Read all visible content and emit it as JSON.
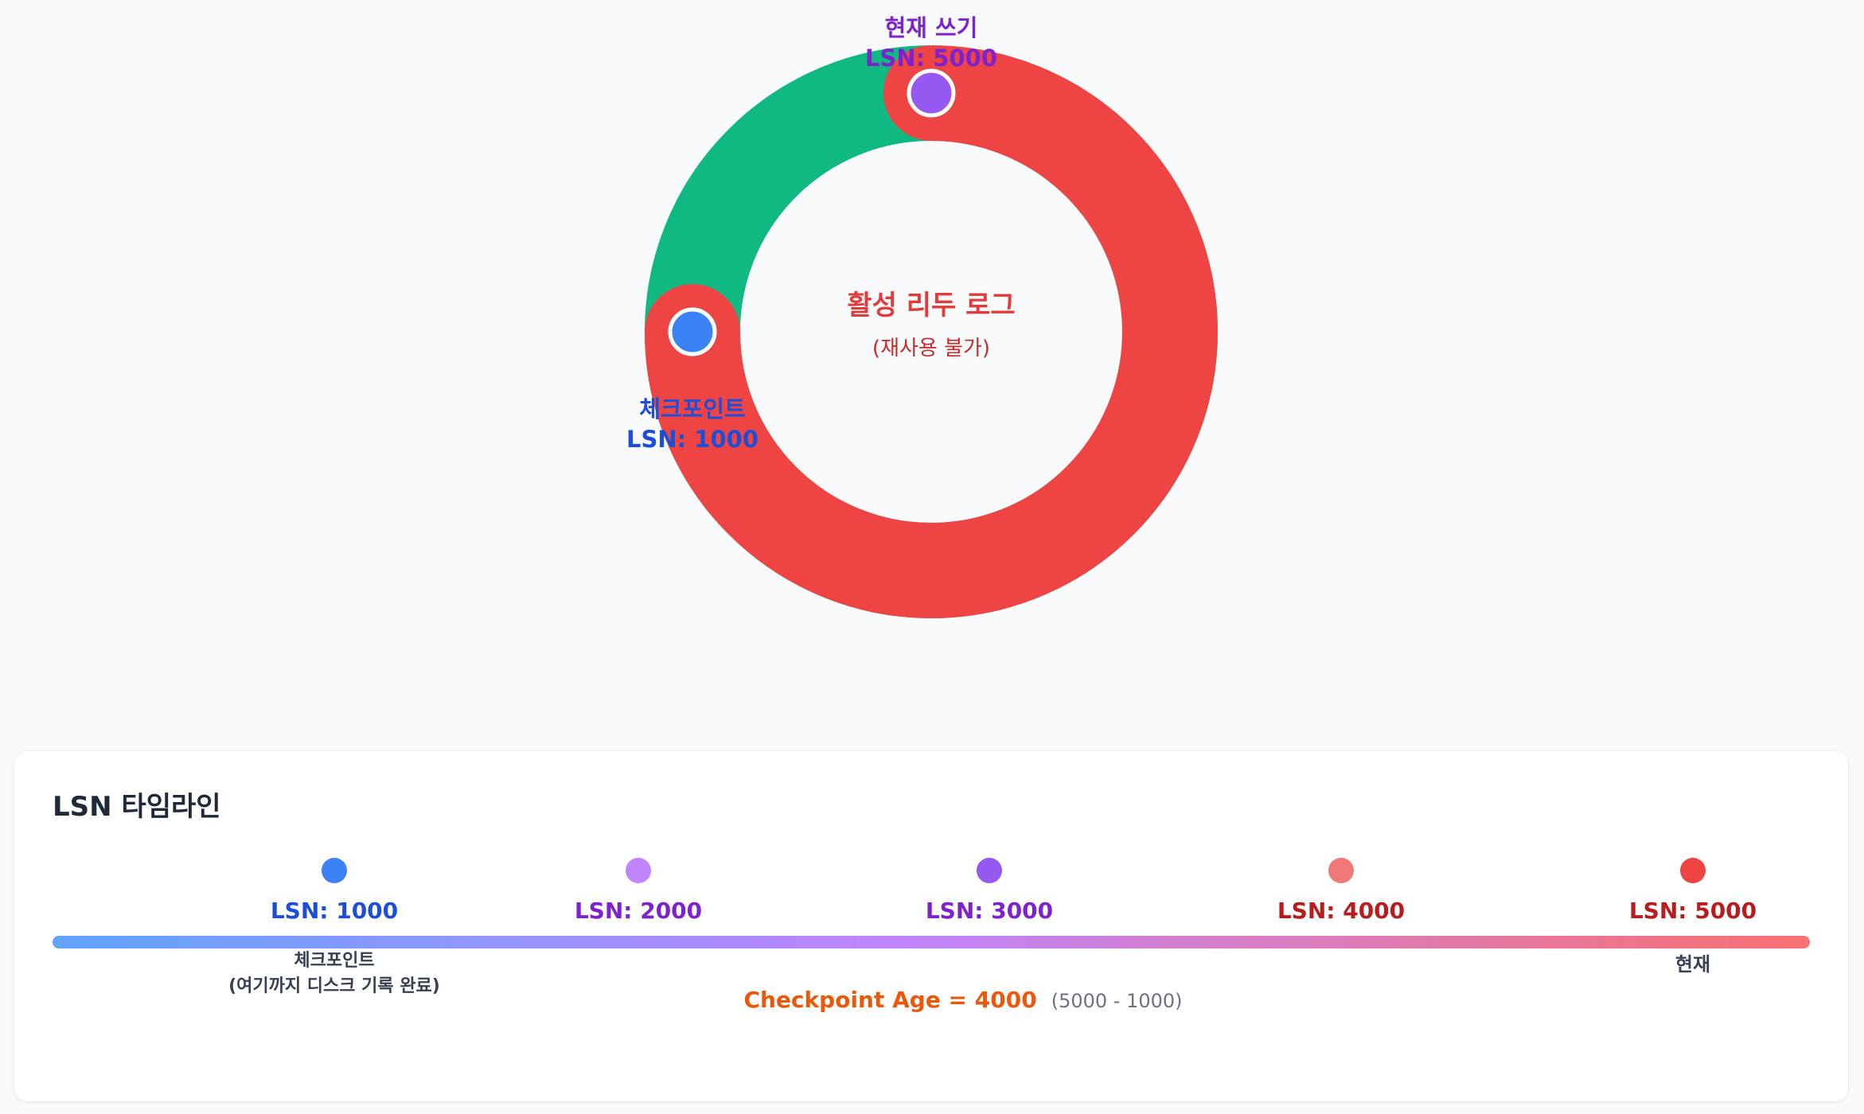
{
  "ring": {
    "colors": {
      "active": "#ef4444",
      "free": "#10b981",
      "checkpoint": "#3b82f6",
      "write": "#9558f0",
      "center_title": "#e23b3b",
      "center_sub": "#c92a2a",
      "checkpoint_text": "#1d4ed8",
      "write_text": "#7e22ce"
    },
    "center_title": "활성 리두 로그",
    "center_subtitle": "(재사용 불가)",
    "checkpoint_label": "체크포인트",
    "checkpoint_lsn": "LSN: 1000",
    "write_label": "현재 쓰기",
    "write_lsn": "LSN: 5000"
  },
  "timeline": {
    "title": "LSN 타임라인",
    "gradient": [
      "#60a5fa",
      "#c084fc",
      "#f87171"
    ],
    "markers": [
      {
        "lsn": "LSN: 1000",
        "dot_color": "#3b82f6",
        "text_color": "#1d4ed8"
      },
      {
        "lsn": "LSN: 2000",
        "dot_color": "#c084fc",
        "text_color": "#7e22ce"
      },
      {
        "lsn": "LSN: 3000",
        "dot_color": "#9558f0",
        "text_color": "#7e22ce"
      },
      {
        "lsn": "LSN: 4000",
        "dot_color": "#f07878",
        "text_color": "#b91c1c"
      },
      {
        "lsn": "LSN: 5000",
        "dot_color": "#ef4444",
        "text_color": "#b91c1c"
      }
    ],
    "checkpoint_note_line1": "체크포인트",
    "checkpoint_note_line2": "(여기까지 디스크 기록 완료)",
    "current_note": "현재",
    "age_label": "Checkpoint Age = 4000",
    "age_formula": "(5000 - 1000)"
  }
}
